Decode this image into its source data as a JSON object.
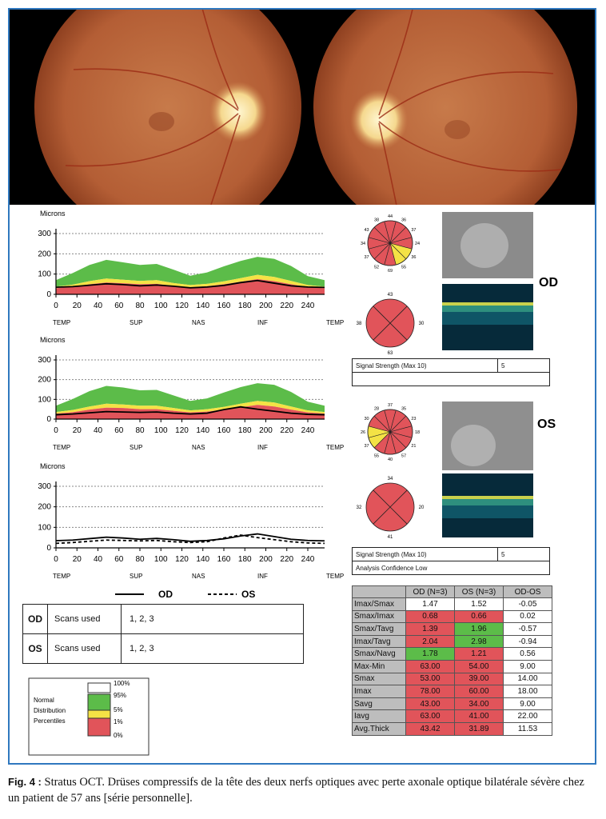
{
  "labels": {
    "microns": "Microns",
    "od": "OD",
    "os": "OS",
    "signal_strength": "Signal Strength (Max 10)",
    "signal_od": "5",
    "signal_os": "5",
    "analysis_confidence": "Analysis Confidence Low"
  },
  "chart_data": [
    {
      "type": "area",
      "eye": "OD",
      "ylabel": "Microns",
      "ylim": [
        0,
        300
      ],
      "yticks": [
        0,
        100,
        200,
        300
      ],
      "xlim": [
        0,
        256
      ],
      "xticks": [
        0,
        20,
        40,
        60,
        80,
        100,
        120,
        140,
        160,
        180,
        200,
        220,
        240
      ],
      "xlabels": [
        "TEMP",
        "SUP",
        "NAS",
        "INF",
        "TEMP"
      ],
      "x": [
        0,
        16,
        32,
        48,
        64,
        80,
        96,
        112,
        128,
        144,
        160,
        176,
        192,
        208,
        224,
        240,
        256
      ],
      "bands": {
        "p1": [
          30,
          38,
          50,
          58,
          55,
          50,
          52,
          42,
          35,
          40,
          50,
          62,
          75,
          65,
          50,
          36,
          30
        ],
        "p5": [
          38,
          48,
          65,
          78,
          72,
          66,
          70,
          56,
          46,
          52,
          64,
          80,
          96,
          86,
          66,
          46,
          38
        ],
        "p95": [
          70,
          105,
          145,
          170,
          158,
          145,
          150,
          122,
          92,
          108,
          138,
          165,
          185,
          175,
          140,
          90,
          70
        ]
      },
      "series": [
        {
          "name": "OD",
          "values": [
            35,
            38,
            45,
            52,
            48,
            42,
            46,
            40,
            32,
            36,
            44,
            58,
            68,
            55,
            42,
            36,
            34
          ]
        }
      ]
    },
    {
      "type": "area",
      "eye": "OS",
      "ylabel": "Microns",
      "ylim": [
        0,
        300
      ],
      "yticks": [
        0,
        100,
        200,
        300
      ],
      "xlim": [
        0,
        256
      ],
      "xticks": [
        0,
        20,
        40,
        60,
        80,
        100,
        120,
        140,
        160,
        180,
        200,
        220,
        240
      ],
      "xlabels": [
        "TEMP",
        "SUP",
        "NAS",
        "INF",
        "TEMP"
      ],
      "x": [
        0,
        16,
        32,
        48,
        64,
        80,
        96,
        112,
        128,
        144,
        160,
        176,
        192,
        208,
        224,
        240,
        256
      ],
      "bands": {
        "p1": [
          28,
          35,
          48,
          58,
          56,
          50,
          50,
          42,
          34,
          38,
          48,
          60,
          72,
          64,
          48,
          34,
          28
        ],
        "p5": [
          36,
          46,
          64,
          78,
          74,
          68,
          68,
          56,
          44,
          50,
          62,
          78,
          92,
          84,
          64,
          44,
          36
        ],
        "p95": [
          68,
          102,
          142,
          168,
          160,
          146,
          148,
          120,
          92,
          105,
          135,
          162,
          182,
          174,
          138,
          88,
          68
        ]
      },
      "series": [
        {
          "name": "OS",
          "values": [
            22,
            26,
            32,
            38,
            36,
            34,
            36,
            30,
            26,
            30,
            48,
            62,
            50,
            40,
            30,
            24,
            22
          ]
        }
      ]
    },
    {
      "type": "line",
      "ylabel": "Microns",
      "ylim": [
        0,
        300
      ],
      "yticks": [
        0,
        100,
        200,
        300
      ],
      "xlim": [
        0,
        256
      ],
      "xticks": [
        0,
        20,
        40,
        60,
        80,
        100,
        120,
        140,
        160,
        180,
        200,
        220,
        240
      ],
      "xlabels": [
        "TEMP",
        "SUP",
        "NAS",
        "INF",
        "TEMP"
      ],
      "x": [
        0,
        16,
        32,
        48,
        64,
        80,
        96,
        112,
        128,
        144,
        160,
        176,
        192,
        208,
        224,
        240,
        256
      ],
      "series": [
        {
          "name": "OD",
          "values": [
            35,
            38,
            45,
            52,
            48,
            42,
            46,
            40,
            32,
            36,
            44,
            58,
            68,
            55,
            42,
            36,
            34
          ]
        },
        {
          "name": "OS",
          "values": [
            22,
            26,
            32,
            38,
            36,
            34,
            36,
            30,
            26,
            30,
            48,
            62,
            50,
            40,
            30,
            24,
            22
          ]
        }
      ],
      "legend": [
        "OD",
        "OS"
      ]
    }
  ],
  "clock_charts": {
    "od_12": {
      "values": [
        "44",
        "36",
        "37",
        "24",
        "36",
        "55",
        "69",
        "52",
        "37",
        "34",
        "43",
        "38"
      ],
      "colors": [
        "red",
        "red",
        "red",
        "red",
        "yellow",
        "yellow",
        "red",
        "red",
        "red",
        "red",
        "red",
        "red"
      ]
    },
    "od_4": {
      "values": [
        "43",
        "30",
        "63",
        "38"
      ]
    },
    "os_12": {
      "values": [
        "37",
        "35",
        "23",
        "18",
        "21",
        "57",
        "40",
        "55",
        "37",
        "26",
        "30",
        "28"
      ],
      "colors": [
        "red",
        "red",
        "red",
        "red",
        "red",
        "red",
        "red",
        "red",
        "yellow",
        "yellow",
        "red",
        "red"
      ]
    },
    "os_4": {
      "values": [
        "34",
        "20",
        "41",
        "32"
      ]
    }
  },
  "scans": {
    "od": {
      "eye": "OD",
      "label": "Scans used",
      "value": "1, 2, 3"
    },
    "os": {
      "eye": "OS",
      "label": "Scans used",
      "value": "1, 2, 3"
    }
  },
  "legend": {
    "title": [
      "Normal",
      "Distribution",
      "Percentiles"
    ],
    "ticks": [
      "100%",
      "95%",
      "5%",
      "1%",
      "0%"
    ],
    "colors": {
      "white": "#ffffff",
      "green": "#5cbc49",
      "yellow": "#f4e245",
      "red": "#e1545a"
    }
  },
  "ratio_table": {
    "headers": [
      "",
      "OD (N=3)",
      "OS (N=3)",
      "OD-OS"
    ],
    "rows": [
      {
        "label": "Imax/Smax",
        "od": "1.47",
        "os": "1.52",
        "diff": "-0.05",
        "odc": "w",
        "osc": "w"
      },
      {
        "label": "Smax/Imax",
        "od": "0.68",
        "os": "0.66",
        "diff": "0.02",
        "odc": "r",
        "osc": "r"
      },
      {
        "label": "Smax/Tavg",
        "od": "1.39",
        "os": "1.96",
        "diff": "-0.57",
        "odc": "r",
        "osc": "g"
      },
      {
        "label": "Imax/Tavg",
        "od": "2.04",
        "os": "2.98",
        "diff": "-0.94",
        "odc": "r",
        "osc": "g"
      },
      {
        "label": "Smax/Navg",
        "od": "1.78",
        "os": "1.21",
        "diff": "0.56",
        "odc": "g",
        "osc": "r"
      },
      {
        "label": "Max-Min",
        "od": "63.00",
        "os": "54.00",
        "diff": "9.00",
        "odc": "r",
        "osc": "r"
      },
      {
        "label": "Smax",
        "od": "53.00",
        "os": "39.00",
        "diff": "14.00",
        "odc": "r",
        "osc": "r"
      },
      {
        "label": "Imax",
        "od": "78.00",
        "os": "60.00",
        "diff": "18.00",
        "odc": "r",
        "osc": "r"
      },
      {
        "label": "Savg",
        "od": "43.00",
        "os": "34.00",
        "diff": "9.00",
        "odc": "r",
        "osc": "r"
      },
      {
        "label": "Iavg",
        "od": "63.00",
        "os": "41.00",
        "diff": "22.00",
        "odc": "r",
        "osc": "r"
      },
      {
        "label": "Avg.Thick",
        "od": "43.42",
        "os": "31.89",
        "diff": "11.53",
        "odc": "r",
        "osc": "r"
      }
    ]
  },
  "caption": {
    "fig": "Fig. 4 :",
    "text": "Stratus OCT. Drüses compressifs de la tête des deux nerfs optiques avec perte axonale optique bilatérale sévère chez un patient de 57 ans [série personnelle]."
  }
}
